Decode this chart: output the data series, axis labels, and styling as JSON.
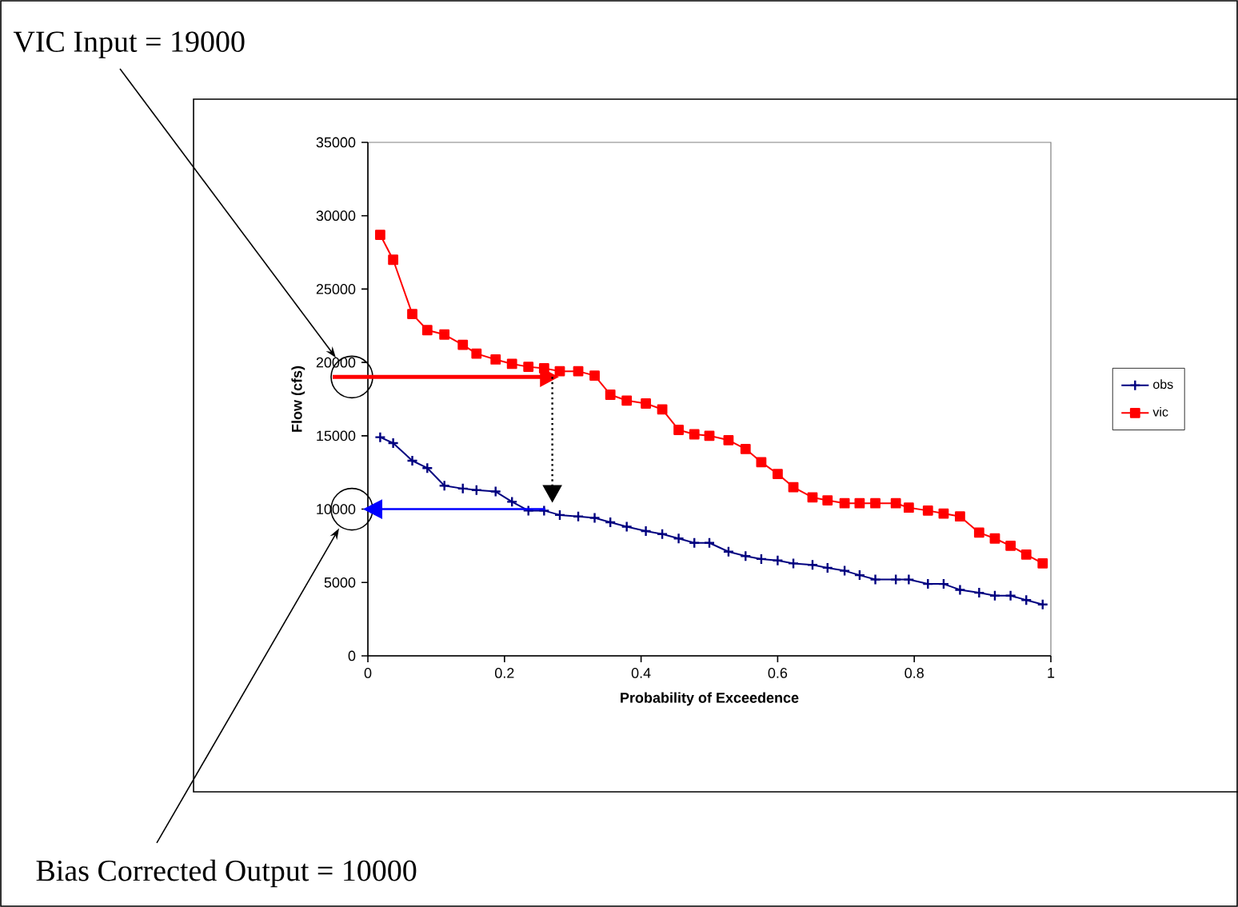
{
  "chart_data": {
    "type": "line",
    "xlabel": "Probability of Exceedence",
    "ylabel": "Flow (cfs)",
    "annotations": [
      "VIC Input = 19000",
      "Bias Corrected Output = 10000"
    ],
    "x": [
      0.018,
      0.037,
      0.065,
      0.087,
      0.112,
      0.139,
      0.159,
      0.187,
      0.211,
      0.235,
      0.258,
      0.281,
      0.308,
      0.332,
      0.355,
      0.379,
      0.407,
      0.431,
      0.455,
      0.478,
      0.5,
      0.528,
      0.553,
      0.576,
      0.6,
      0.623,
      0.651,
      0.673,
      0.698,
      0.72,
      0.743,
      0.773,
      0.792,
      0.82,
      0.843,
      0.867,
      0.895,
      0.918,
      0.941,
      0.964,
      0.988
    ],
    "series": [
      {
        "name": "obs",
        "color": "#000080",
        "marker": "cross",
        "values": [
          14900,
          14500,
          13300,
          12800,
          11600,
          11400,
          11300,
          11200,
          10500,
          9900,
          9900,
          9600,
          9500,
          9400,
          9100,
          8800,
          8500,
          8300,
          8000,
          7700,
          7700,
          7100,
          6800,
          6600,
          6500,
          6300,
          6200,
          6000,
          5800,
          5500,
          5200,
          5200,
          5200,
          4900,
          4900,
          4500,
          4300,
          4100,
          4100,
          3800,
          3500
        ]
      },
      {
        "name": "vic",
        "color": "#ff0000",
        "marker": "square",
        "values": [
          28700,
          27000,
          23300,
          22200,
          21900,
          21200,
          20600,
          20200,
          19900,
          19700,
          19600,
          19400,
          19400,
          19100,
          17800,
          17400,
          17200,
          16800,
          15400,
          15100,
          15000,
          14700,
          14100,
          13200,
          12400,
          11500,
          10800,
          10600,
          10400,
          10400,
          10400,
          10400,
          10100,
          9900,
          9700,
          9500,
          8400,
          8000,
          7500,
          6900,
          6300
        ]
      }
    ],
    "xlim": [
      0,
      1
    ],
    "xticks": [
      0,
      0.2,
      0.4,
      0.6,
      0.8,
      1
    ],
    "ylim": [
      0,
      35000
    ],
    "yticks": [
      0,
      5000,
      10000,
      15000,
      20000,
      25000,
      30000,
      35000
    ],
    "legend": "right",
    "grid": false,
    "line_style": "solid"
  }
}
